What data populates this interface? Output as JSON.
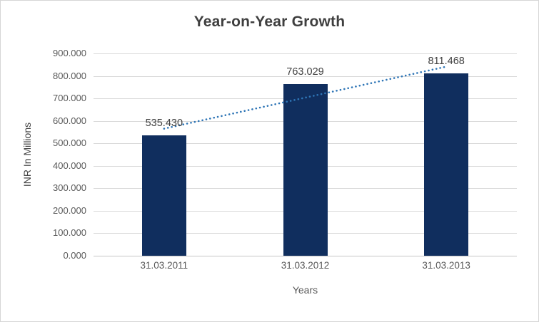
{
  "chart_data": {
    "type": "bar",
    "title": "Year-on-Year Growth",
    "xlabel": "Years",
    "ylabel": "INR In Millions",
    "categories": [
      "31.03.2011",
      "31.03.2012",
      "31.03.2013"
    ],
    "values": [
      535430,
      763029,
      811468
    ],
    "value_labels": [
      "535.430",
      "763.029",
      "811.468"
    ],
    "ylim": [
      0,
      900000
    ],
    "ytick_step": 100000,
    "ytick_labels": [
      "0.000",
      "100.000",
      "200.000",
      "300.000",
      "400.000",
      "500.000",
      "600.000",
      "700.000",
      "800.000",
      "900.000"
    ],
    "grid": true,
    "legend": "none",
    "bar_color": "#102E5E",
    "trendline": {
      "type": "linear",
      "style": "dotted",
      "color": "#2E75B6"
    },
    "colors": {
      "title_text": "#3F3F3F",
      "axis_text": "#595959",
      "gridline": "#D9D9D9",
      "axis_line": "#C6C6C6",
      "border": "#D6D6D6",
      "background": "#FFFFFF"
    }
  }
}
